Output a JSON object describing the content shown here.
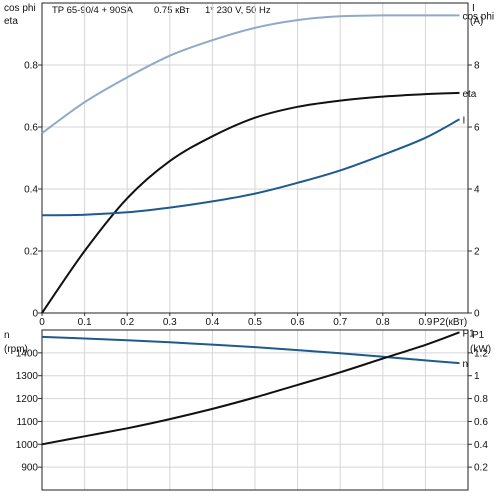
{
  "header": {
    "model": "TP 65-90/4 + 90SA",
    "power": "0.75 кВт",
    "supply": "1* 230 V, 50 Hz"
  },
  "colors": {
    "cosphi": "#8eaac8",
    "eta": "#111111",
    "current": "#1f5a8f",
    "speed": "#1f5a8f",
    "p1": "#111111",
    "grid": "#d6d6d6"
  },
  "chart_data": [
    {
      "type": "line",
      "title": "TP 65-90/4 + 90SA   0.75 кВт   1* 230 V, 50 Hz",
      "xlabel": "P2(кВт)",
      "xlim": [
        0,
        1.0
      ],
      "x_ticks": [
        "0",
        "0.1",
        "0.2",
        "0.3",
        "0.4",
        "0.5",
        "0.6",
        "0.7",
        "0.8",
        "0.9"
      ],
      "left_axis": {
        "label_top": "cos phi",
        "label_bottom": "eta",
        "ylim": [
          0,
          1.0
        ],
        "ticks": [
          "0",
          "0.2",
          "0.4",
          "0.6",
          "0.8"
        ]
      },
      "right_axis": {
        "label_top": "I",
        "label_bottom": "(A)",
        "ylim": [
          0,
          10
        ],
        "ticks": [
          "0",
          "2",
          "4",
          "6",
          "8"
        ]
      },
      "grid": true,
      "x": [
        0,
        0.1,
        0.2,
        0.3,
        0.4,
        0.5,
        0.6,
        0.7,
        0.8,
        0.9,
        0.98
      ],
      "series": [
        {
          "name": "cos phi",
          "axis": "left",
          "values": [
            0.58,
            0.68,
            0.76,
            0.83,
            0.88,
            0.92,
            0.945,
            0.957,
            0.96,
            0.96,
            0.96
          ]
        },
        {
          "name": "eta",
          "axis": "left",
          "values": [
            0.0,
            0.2,
            0.37,
            0.49,
            0.57,
            0.63,
            0.665,
            0.685,
            0.698,
            0.706,
            0.71
          ]
        },
        {
          "name": "I",
          "axis": "right",
          "values": [
            3.15,
            3.17,
            3.25,
            3.4,
            3.6,
            3.85,
            4.2,
            4.6,
            5.1,
            5.65,
            6.25
          ]
        }
      ]
    },
    {
      "type": "line",
      "xlim": [
        0,
        1.0
      ],
      "left_axis": {
        "label_top": "n",
        "label_bottom": "(rpm)",
        "ylim": [
          800,
          1500
        ],
        "ticks": [
          "900",
          "1000",
          "1100",
          "1200",
          "1300",
          "1400"
        ]
      },
      "right_axis": {
        "label_top": "P1",
        "label_bottom": "(kW)",
        "ylim": [
          0,
          1.4
        ],
        "ticks": [
          "0.2",
          "0.4",
          "0.6",
          "0.8",
          "1",
          "1.2"
        ]
      },
      "grid": true,
      "x": [
        0,
        0.1,
        0.2,
        0.3,
        0.4,
        0.5,
        0.6,
        0.7,
        0.8,
        0.9,
        0.98
      ],
      "series": [
        {
          "name": "n",
          "axis": "left",
          "values": [
            1470,
            1463,
            1455,
            1446,
            1436,
            1425,
            1412,
            1398,
            1383,
            1367,
            1355
          ]
        },
        {
          "name": "P1",
          "axis": "right",
          "values": [
            0.4,
            0.47,
            0.54,
            0.62,
            0.71,
            0.81,
            0.92,
            1.03,
            1.15,
            1.27,
            1.38
          ]
        }
      ]
    }
  ]
}
